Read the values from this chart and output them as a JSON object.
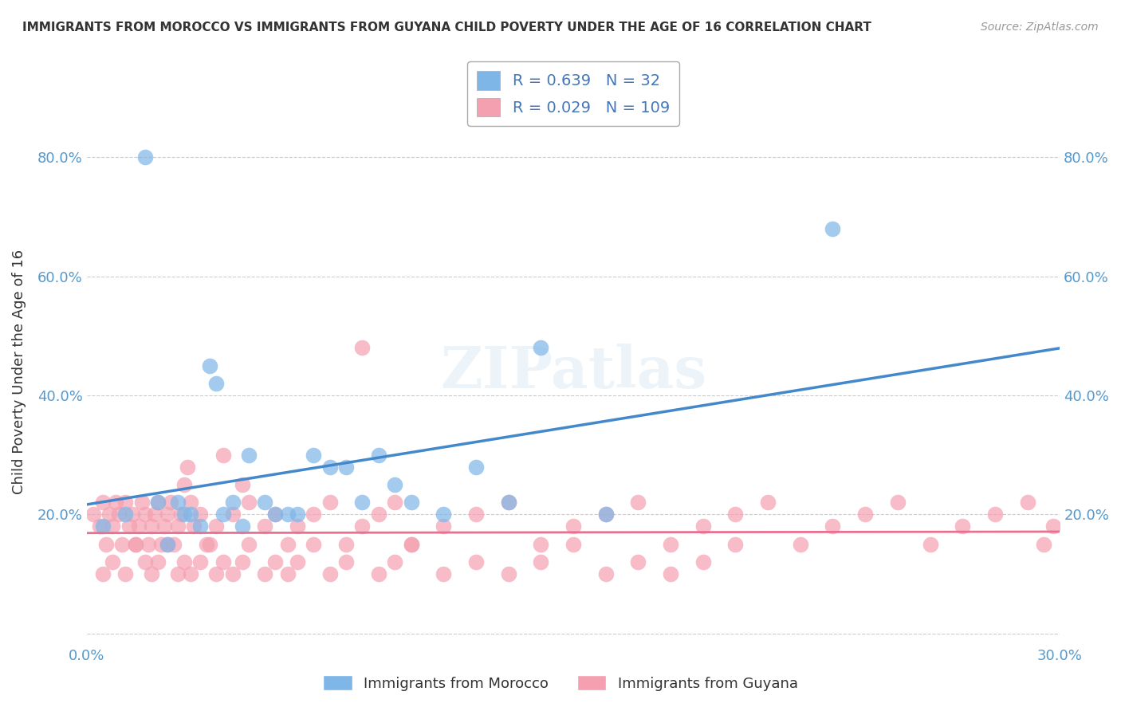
{
  "title": "IMMIGRANTS FROM MOROCCO VS IMMIGRANTS FROM GUYANA CHILD POVERTY UNDER THE AGE OF 16 CORRELATION CHART",
  "source": "Source: ZipAtlas.com",
  "xlabel": "",
  "ylabel": "Child Poverty Under the Age of 16",
  "xlim": [
    0.0,
    0.3
  ],
  "ylim": [
    -0.02,
    0.9
  ],
  "x_ticks": [
    0.0,
    0.3
  ],
  "x_tick_labels": [
    "0.0%",
    "30.0%"
  ],
  "y_ticks": [
    0.0,
    0.2,
    0.4,
    0.6,
    0.8
  ],
  "y_tick_labels": [
    "",
    "20.0%",
    "40.0%",
    "60.0%",
    "80.0%"
  ],
  "morocco_color": "#7EB6E8",
  "guyana_color": "#F4A0B0",
  "morocco_line_color": "#4488CC",
  "guyana_line_color": "#E87090",
  "watermark": "ZIPatlas",
  "legend_R_morocco": "0.639",
  "legend_N_morocco": "32",
  "legend_R_guyana": "0.029",
  "legend_N_guyana": "109",
  "morocco_scatter_x": [
    0.005,
    0.012,
    0.018,
    0.022,
    0.025,
    0.028,
    0.03,
    0.032,
    0.035,
    0.038,
    0.04,
    0.042,
    0.045,
    0.048,
    0.05,
    0.055,
    0.058,
    0.062,
    0.065,
    0.07,
    0.075,
    0.08,
    0.085,
    0.09,
    0.095,
    0.1,
    0.11,
    0.12,
    0.13,
    0.14,
    0.16,
    0.23
  ],
  "morocco_scatter_y": [
    0.18,
    0.2,
    0.8,
    0.22,
    0.15,
    0.22,
    0.2,
    0.2,
    0.18,
    0.45,
    0.42,
    0.2,
    0.22,
    0.18,
    0.3,
    0.22,
    0.2,
    0.2,
    0.2,
    0.3,
    0.28,
    0.28,
    0.22,
    0.3,
    0.25,
    0.22,
    0.2,
    0.28,
    0.22,
    0.48,
    0.2,
    0.68
  ],
  "guyana_scatter_x": [
    0.002,
    0.004,
    0.005,
    0.006,
    0.007,
    0.008,
    0.009,
    0.01,
    0.011,
    0.012,
    0.013,
    0.014,
    0.015,
    0.016,
    0.017,
    0.018,
    0.019,
    0.02,
    0.021,
    0.022,
    0.023,
    0.024,
    0.025,
    0.026,
    0.027,
    0.028,
    0.029,
    0.03,
    0.031,
    0.032,
    0.033,
    0.035,
    0.037,
    0.04,
    0.042,
    0.045,
    0.048,
    0.05,
    0.055,
    0.058,
    0.062,
    0.065,
    0.07,
    0.075,
    0.08,
    0.085,
    0.09,
    0.095,
    0.1,
    0.11,
    0.12,
    0.13,
    0.14,
    0.15,
    0.16,
    0.17,
    0.18,
    0.19,
    0.2,
    0.21,
    0.22,
    0.23,
    0.24,
    0.25,
    0.26,
    0.27,
    0.28,
    0.29,
    0.295,
    0.298,
    0.005,
    0.008,
    0.012,
    0.015,
    0.018,
    0.02,
    0.022,
    0.025,
    0.028,
    0.03,
    0.032,
    0.035,
    0.038,
    0.04,
    0.042,
    0.045,
    0.048,
    0.05,
    0.055,
    0.058,
    0.062,
    0.065,
    0.07,
    0.075,
    0.08,
    0.085,
    0.09,
    0.095,
    0.1,
    0.11,
    0.12,
    0.13,
    0.14,
    0.15,
    0.16,
    0.17,
    0.18,
    0.19,
    0.2
  ],
  "guyana_scatter_y": [
    0.2,
    0.18,
    0.22,
    0.15,
    0.2,
    0.18,
    0.22,
    0.2,
    0.15,
    0.22,
    0.18,
    0.2,
    0.15,
    0.18,
    0.22,
    0.2,
    0.15,
    0.18,
    0.2,
    0.22,
    0.15,
    0.18,
    0.2,
    0.22,
    0.15,
    0.18,
    0.2,
    0.25,
    0.28,
    0.22,
    0.18,
    0.2,
    0.15,
    0.18,
    0.3,
    0.2,
    0.25,
    0.22,
    0.18,
    0.2,
    0.15,
    0.18,
    0.2,
    0.22,
    0.15,
    0.18,
    0.2,
    0.22,
    0.15,
    0.18,
    0.2,
    0.22,
    0.15,
    0.18,
    0.2,
    0.22,
    0.15,
    0.18,
    0.2,
    0.22,
    0.15,
    0.18,
    0.2,
    0.22,
    0.15,
    0.18,
    0.2,
    0.22,
    0.15,
    0.18,
    0.1,
    0.12,
    0.1,
    0.15,
    0.12,
    0.1,
    0.12,
    0.15,
    0.1,
    0.12,
    0.1,
    0.12,
    0.15,
    0.1,
    0.12,
    0.1,
    0.12,
    0.15,
    0.1,
    0.12,
    0.1,
    0.12,
    0.15,
    0.1,
    0.12,
    0.48,
    0.1,
    0.12,
    0.15,
    0.1,
    0.12,
    0.1,
    0.12,
    0.15,
    0.1,
    0.12,
    0.1,
    0.12,
    0.15
  ]
}
